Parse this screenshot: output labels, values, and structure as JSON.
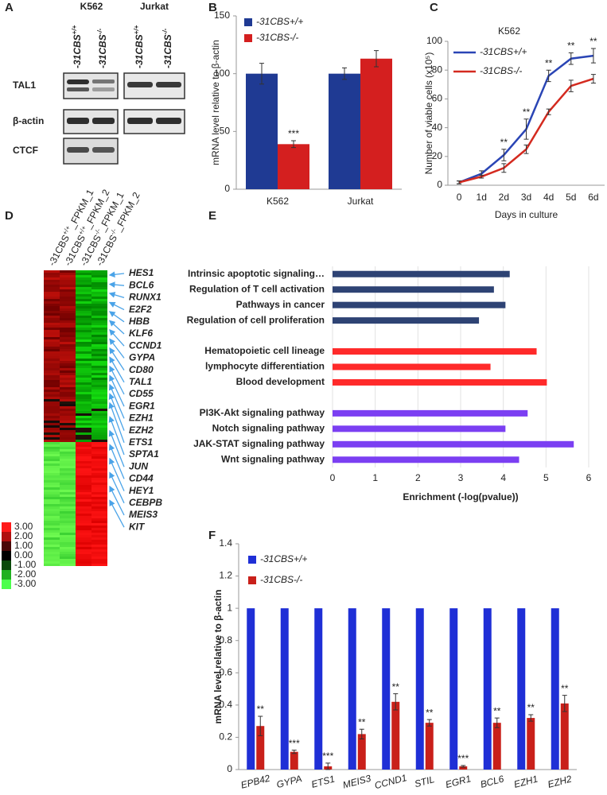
{
  "panel_labels": [
    "A",
    "B",
    "C",
    "D",
    "E",
    "F"
  ],
  "blot": {
    "cell_lines": [
      "K562",
      "Jurkat"
    ],
    "columns": [
      {
        "base": "-31CBS",
        "sup": "+/+"
      },
      {
        "base": "-31CBS",
        "sup": "-/-"
      },
      {
        "base": "-31CBS",
        "sup": "+/+"
      },
      {
        "base": "-31CBS",
        "sup": "-/-"
      }
    ],
    "rows": [
      "TAL1",
      "β-actin",
      "CTCF"
    ]
  },
  "heatmap": {
    "columns": [
      {
        "base": "-31CBS",
        "sup": "+/+",
        "suffix": "_FPKM_1"
      },
      {
        "base": "-31CBS",
        "sup": "+/+",
        "suffix": "_FPKM_2"
      },
      {
        "base": "-31CBS",
        "sup": "-/-",
        "suffix": "_FPKM_1"
      },
      {
        "base": "-31CBS",
        "sup": "-/-",
        "suffix": "_FPKM_2"
      }
    ],
    "genes": [
      "HES1",
      "BCL6",
      "RUNX1",
      "E2F2",
      "HBB",
      "KLF6",
      "CCND1",
      "GYPA",
      "CD80",
      "TAL1",
      "CD55",
      "EGR1",
      "EZH1",
      "EZH2",
      "ETS1",
      "SPTA1",
      "JUN",
      "CD44",
      "HEY1",
      "CEBPB",
      "MEIS3",
      "KIT"
    ],
    "scale_labels": [
      "3.00",
      "2.00",
      "1.00",
      "0.00",
      "-1.00",
      "-2.00",
      "-3.00"
    ]
  },
  "chart_data": [
    {
      "type": "bar",
      "ylabel": "mRNA level relative to β-actin",
      "categories": [
        "K562",
        "Jurkat"
      ],
      "series": [
        {
          "name": "-31CBS+/+",
          "color": "#1f3a93",
          "values": [
            100,
            100
          ],
          "errors": [
            9,
            5
          ]
        },
        {
          "name": "-31CBS-/-",
          "color": "#d41f1f",
          "values": [
            39,
            113
          ],
          "errors": [
            3,
            7
          ],
          "annotations": [
            "***",
            null
          ]
        }
      ],
      "ylim": [
        0,
        150
      ],
      "yticks": [
        0,
        50,
        100,
        150
      ],
      "legend": "upper left"
    },
    {
      "type": "line",
      "title": "K562",
      "xlabel": "Days in culture",
      "ylabel": "Number of viable cells (x10⁵)",
      "categories": [
        "0",
        "1d",
        "2d",
        "3d",
        "4d",
        "5d",
        "6d"
      ],
      "series": [
        {
          "name": "-31CBS+/+",
          "color": "#2a45b5",
          "values": [
            2,
            8,
            21,
            39,
            76,
            88,
            90
          ],
          "errors": [
            1,
            2,
            4,
            7,
            4,
            4,
            5
          ],
          "annotations": [
            null,
            null,
            "**",
            "**",
            "**",
            "**",
            "**"
          ]
        },
        {
          "name": "-31CBS-/-",
          "color": "#d42a1f",
          "values": [
            2,
            6,
            12,
            25,
            51,
            69,
            74
          ],
          "errors": [
            1,
            1,
            3,
            3,
            2,
            4,
            3
          ]
        }
      ],
      "ylim": [
        0,
        100
      ],
      "yticks": [
        0,
        20,
        40,
        60,
        80,
        100
      ],
      "legend": "upper left"
    },
    {
      "type": "hbar",
      "xlabel": "Enrichment (-log(pvalue))",
      "categories": [
        "Intrinsic apoptotic signaling…",
        "Regulation of T cell activation",
        "Pathways in cancer",
        "Regulation of cell proliferation",
        null,
        "Hematopoietic cell lineage",
        "lymphocyte differentiation",
        "Blood development",
        null,
        "PI3K-Akt signaling pathway",
        "Notch signaling pathway",
        "JAK-STAT signaling pathway",
        "Wnt signaling pathway"
      ],
      "values": [
        4.15,
        3.78,
        4.05,
        3.43,
        null,
        4.78,
        3.7,
        5.02,
        null,
        4.57,
        4.05,
        5.65,
        4.37
      ],
      "colors": [
        "#2e4374",
        "#2e4374",
        "#2e4374",
        "#2e4374",
        null,
        "#ff2a2a",
        "#ff2a2a",
        "#ff2a2a",
        null,
        "#7b3ff2",
        "#7b3ff2",
        "#7b3ff2",
        "#7b3ff2"
      ],
      "xlim": [
        0,
        6
      ],
      "xticks": [
        0,
        1,
        2,
        3,
        4,
        5,
        6
      ],
      "grid": true
    },
    {
      "type": "bar",
      "ylabel": "mRNA level relative to β-actin",
      "categories": [
        "EPB42",
        "GYPA",
        "ETS1",
        "MEIS3",
        "CCND1",
        "STIL",
        "EGR1",
        "BCL6",
        "EZH1",
        "EZH2"
      ],
      "series": [
        {
          "name": "-31CBS+/+",
          "color": "#1f2fd6",
          "values": [
            1,
            1,
            1,
            1,
            1,
            1,
            1,
            1,
            1,
            1
          ]
        },
        {
          "name": "-31CBS-/-",
          "color": "#c9201a",
          "values": [
            0.27,
            0.11,
            0.02,
            0.22,
            0.42,
            0.29,
            0.02,
            0.29,
            0.32,
            0.41
          ],
          "errors": [
            0.06,
            0.01,
            0.02,
            0.03,
            0.05,
            0.02,
            0.005,
            0.03,
            0.02,
            0.05
          ],
          "annotations": [
            "**",
            "***",
            "***",
            "**",
            "**",
            "**",
            "***",
            "**",
            "**",
            "**"
          ]
        }
      ],
      "ylim": [
        0,
        1.4
      ],
      "yticks": [
        0,
        0.2,
        0.4,
        0.6,
        0.8,
        1,
        1.2,
        1.4
      ],
      "legend": "upper left"
    }
  ]
}
